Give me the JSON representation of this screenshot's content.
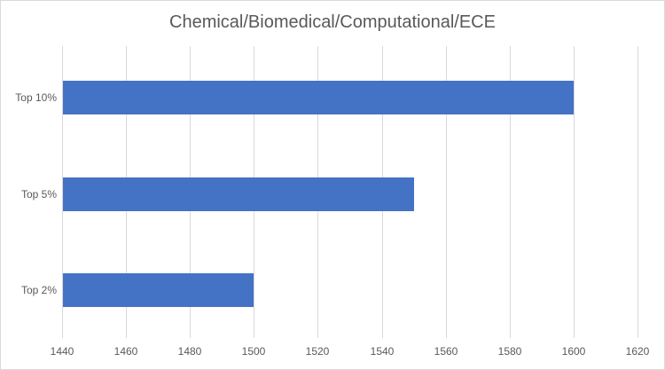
{
  "chart_data": {
    "type": "bar",
    "orientation": "horizontal",
    "title": "Chemical/Biomedical/Computational/ECE",
    "categories": [
      "Top 10%",
      "Top 5%",
      "Top 2%"
    ],
    "values": [
      1600,
      1550,
      1500
    ],
    "xlabel": "",
    "ylabel": "",
    "xlim": [
      1440,
      1620
    ],
    "x_ticks": [
      "1440",
      "1460",
      "1480",
      "1500",
      "1520",
      "1540",
      "1560",
      "1580",
      "1600",
      "1620"
    ],
    "grid": true,
    "legend": "none",
    "bar_color": "#4472c4"
  }
}
